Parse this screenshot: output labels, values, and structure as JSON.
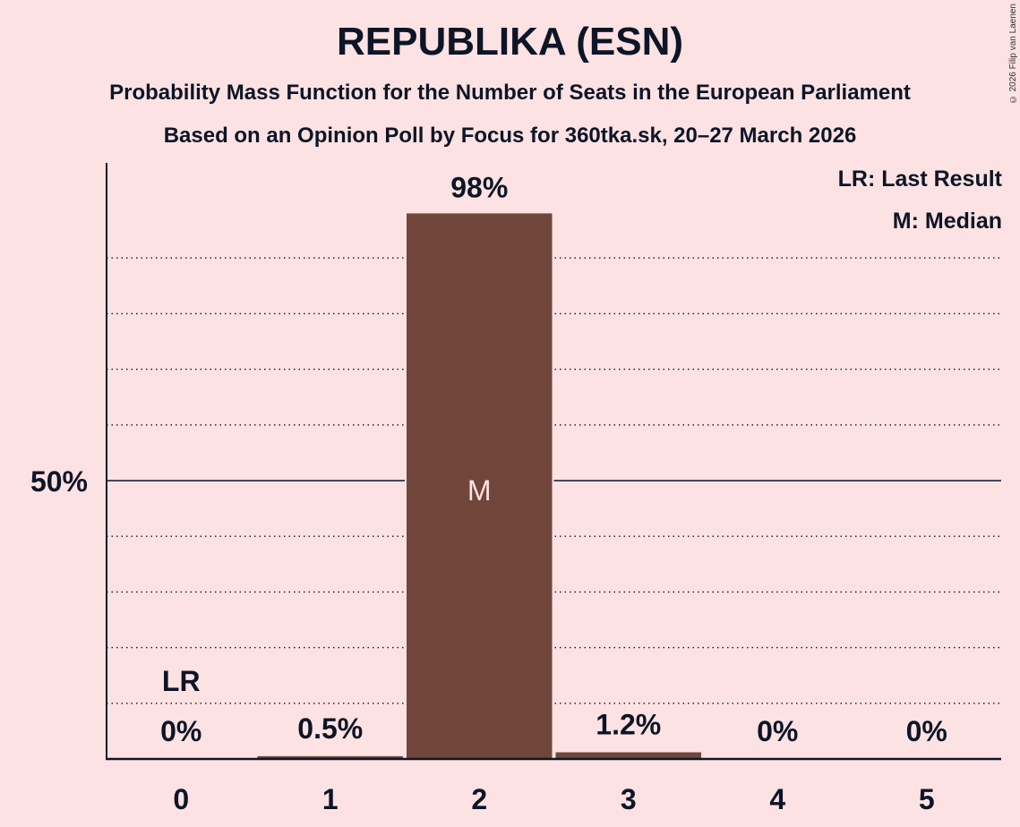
{
  "header": {
    "title": "REPUBLIKA (ESN)",
    "subtitle": "Probability Mass Function for the Number of Seats in the European Parliament",
    "subtitle2": "Based on an Opinion Poll by Focus for 360tka.sk, 20–27 March 2026"
  },
  "copyright": "© 2026 Filip van Laenen",
  "legend": {
    "lr": "LR: Last Result",
    "m": "M: Median"
  },
  "colors": {
    "background": "#fde2e3",
    "bar": "#70463b",
    "text": "#0d1526",
    "median_label": "#fde2e3"
  },
  "chart_data": {
    "type": "bar",
    "title": "REPUBLIKA (ESN)",
    "subtitle": "Probability Mass Function for the Number of Seats in the European Parliament",
    "xlabel": "",
    "ylabel": "",
    "categories": [
      "0",
      "1",
      "2",
      "3",
      "4",
      "5"
    ],
    "values": [
      0,
      0.5,
      98,
      1.2,
      0,
      0
    ],
    "value_labels": [
      "0%",
      "0.5%",
      "98%",
      "1.2%",
      "0%",
      "0%"
    ],
    "ylim": [
      0,
      100
    ],
    "y_tick_labels": [
      "50%"
    ],
    "grid": "dotted every 10%, solid at 50%",
    "annotations": [
      {
        "category": "0",
        "text": "LR",
        "meaning": "Last Result"
      },
      {
        "category": "2",
        "text": "M",
        "meaning": "Median"
      }
    ],
    "legend_position": "top-right"
  }
}
